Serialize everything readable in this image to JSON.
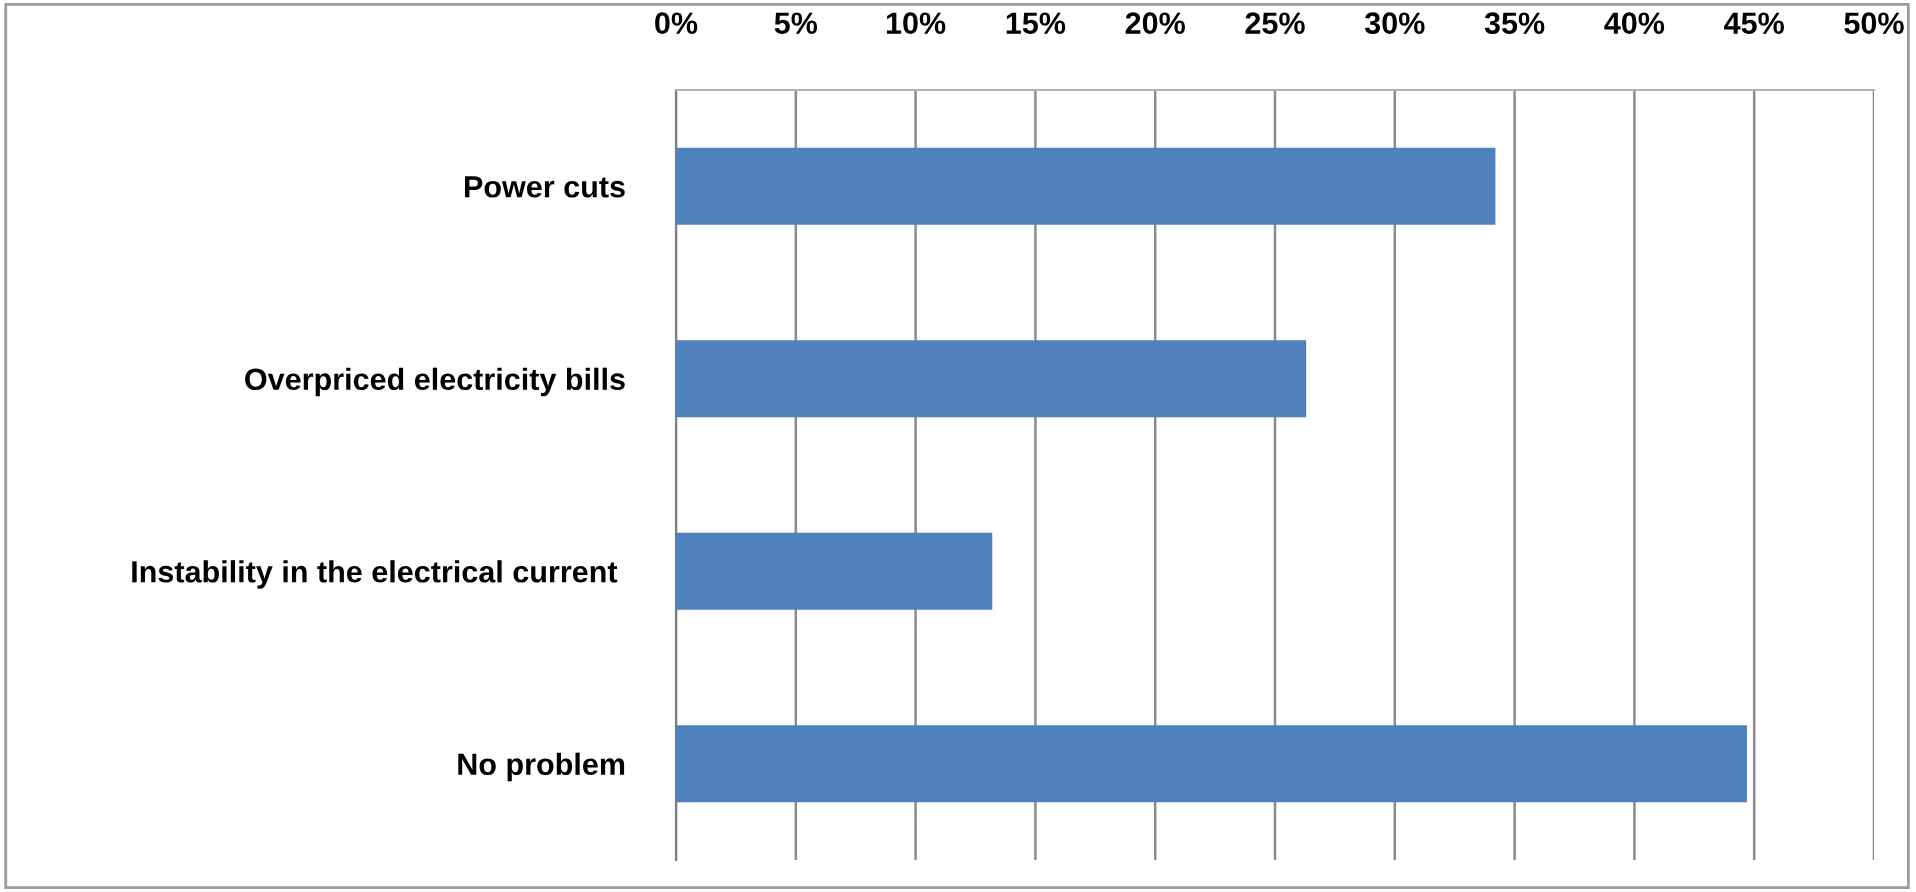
{
  "chart_data": {
    "type": "bar",
    "orientation": "horizontal",
    "categories": [
      "Power cuts",
      "Overpriced electricity bills",
      "Instability in the electrical current ",
      "No problem"
    ],
    "values": [
      34.2,
      26.3,
      13.2,
      44.7
    ],
    "color": "#4f81bd",
    "xlim": [
      0,
      50
    ],
    "xticks": [
      {
        "value": 0,
        "label": "0%"
      },
      {
        "value": 5,
        "label": "5%"
      },
      {
        "value": 10,
        "label": "10%"
      },
      {
        "value": 15,
        "label": "15%"
      },
      {
        "value": 20,
        "label": "20%"
      },
      {
        "value": 25,
        "label": "25%"
      },
      {
        "value": 30,
        "label": "30%"
      },
      {
        "value": 35,
        "label": "35%"
      },
      {
        "value": 40,
        "label": "40%"
      },
      {
        "value": 45,
        "label": "45%"
      },
      {
        "value": 50,
        "label": "50%"
      }
    ],
    "grid": "x",
    "legend": false
  }
}
